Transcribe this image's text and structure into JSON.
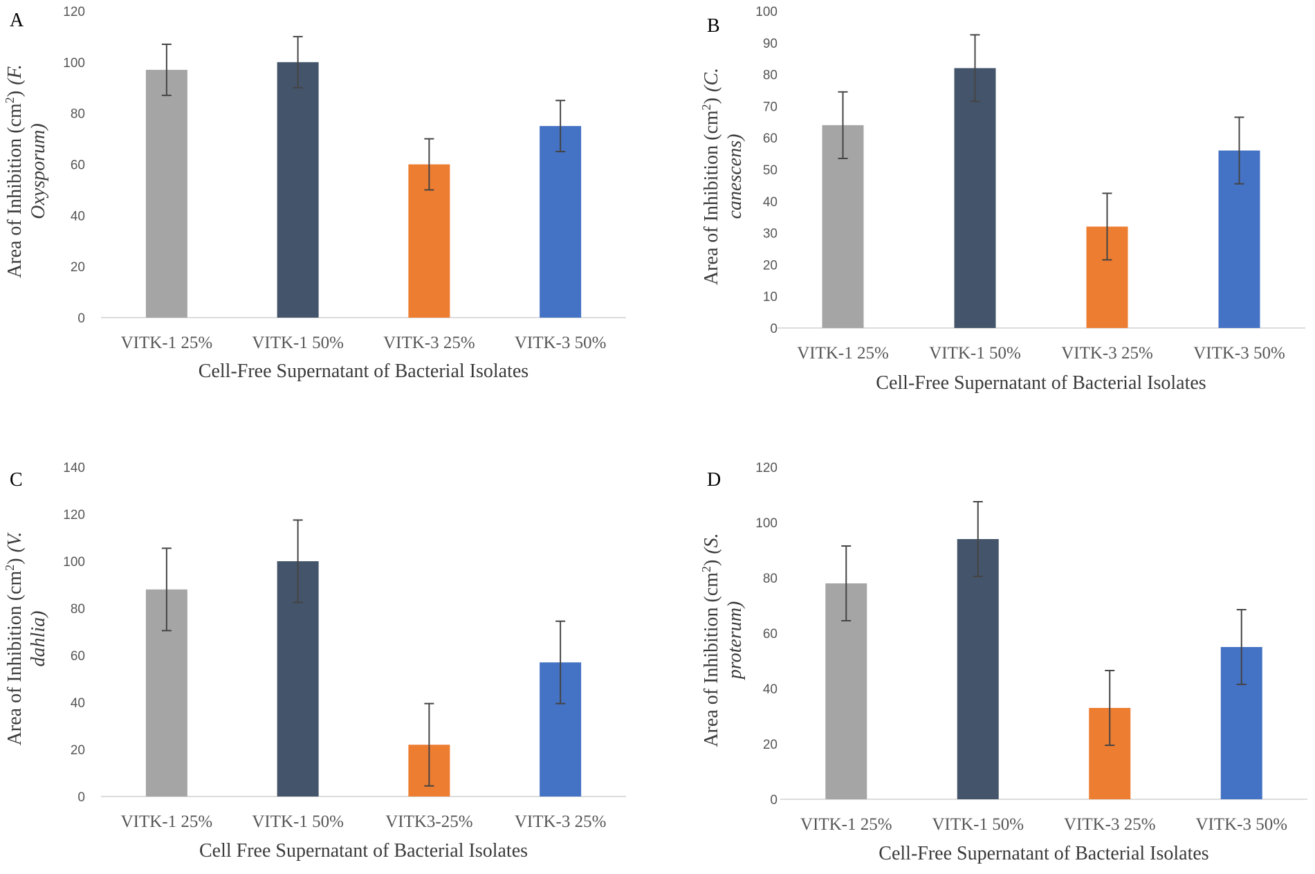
{
  "chart_data": [
    {
      "type": "bar",
      "panel": "A",
      "categories": [
        "VITK-1 25%",
        "VITK-1 50%",
        "VITK-3 25%",
        "VITK-3 50%"
      ],
      "values": [
        97,
        100,
        60,
        75
      ],
      "errors": [
        10,
        10,
        10,
        10
      ],
      "ylim": [
        0,
        120
      ],
      "ystep": 20,
      "ylabel_main": "Area of Inhibition (cm",
      "ylabel_sup": "2",
      "ylabel_close": ")",
      "ylabel_species_1": "(F.",
      "ylabel_species_2": "Oxysporum)",
      "xlabel": "Cell-Free  Supernatant of Bacterial  Isolates",
      "colors": [
        "#a5a5a5",
        "#44546a",
        "#ed7d31",
        "#4472c4"
      ]
    },
    {
      "type": "bar",
      "panel": "B",
      "categories": [
        "VITK-1 25%",
        "VITK-1 50%",
        "VITK-3 25%",
        "VITK-3 50%"
      ],
      "values": [
        64,
        82,
        32,
        56
      ],
      "errors": [
        10.5,
        10.5,
        10.5,
        10.5
      ],
      "ylim": [
        0,
        100
      ],
      "ystep": 10,
      "ylabel_main": "Area of Inhibition (cm",
      "ylabel_sup": "2",
      "ylabel_close": ")",
      "ylabel_species_1": "(C.",
      "ylabel_species_2": "canescens)",
      "xlabel": "Cell-Free  Supernatant of Bacterial  Isolates",
      "colors": [
        "#a5a5a5",
        "#44546a",
        "#ed7d31",
        "#4472c4"
      ]
    },
    {
      "type": "bar",
      "panel": "C",
      "categories": [
        "VITK-1 25%",
        "VITK-1 50%",
        "VITK3-25%",
        "VITK-3 25%"
      ],
      "values": [
        88,
        100,
        22,
        57
      ],
      "errors": [
        17.5,
        17.5,
        17.5,
        17.5
      ],
      "ylim": [
        0,
        140
      ],
      "ystep": 20,
      "ylabel_main": "Area of Inhibition (cm",
      "ylabel_sup": "2",
      "ylabel_close": ")",
      "ylabel_species_1": "(V.",
      "ylabel_species_2": "dahlia)",
      "xlabel": "Cell Free Supernatant of Bacterial  Isolates",
      "colors": [
        "#a5a5a5",
        "#44546a",
        "#ed7d31",
        "#4472c4"
      ]
    },
    {
      "type": "bar",
      "panel": "D",
      "categories": [
        "VITK-1 25%",
        "VITK-1 50%",
        "VITK-3 25%",
        "VITK-3 50%"
      ],
      "values": [
        78,
        94,
        33,
        55
      ],
      "errors": [
        13.5,
        13.5,
        13.5,
        13.5
      ],
      "ylim": [
        0,
        120
      ],
      "ystep": 20,
      "ylabel_main": "Area of Inhibition (cm",
      "ylabel_sup": "2",
      "ylabel_close": ")",
      "ylabel_species_1": "(S.",
      "ylabel_species_2": "proterum)",
      "xlabel": "Cell-Free  Supernatant of Bacterial  Isolates",
      "colors": [
        "#a5a5a5",
        "#44546a",
        "#ed7d31",
        "#4472c4"
      ]
    }
  ]
}
